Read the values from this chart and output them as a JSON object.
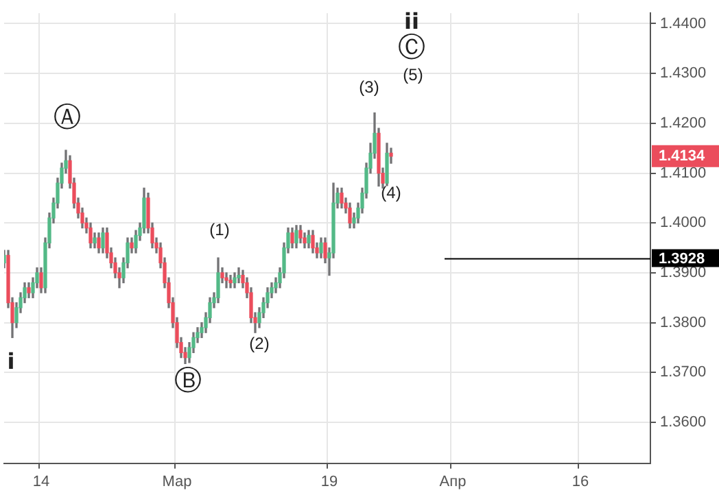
{
  "chart_data": {
    "type": "candlestick",
    "categories": [
      null,
      null,
      null,
      null,
      null,
      null,
      null,
      null,
      null,
      "14",
      null,
      null,
      null,
      null,
      null,
      null,
      null,
      null,
      null,
      null,
      null,
      null,
      null,
      null,
      null,
      null,
      null,
      null,
      null,
      null,
      null,
      null,
      null,
      null,
      null,
      null,
      null,
      null,
      null,
      null,
      null,
      null,
      "Мар",
      null,
      null,
      null,
      null,
      null,
      null,
      null,
      null,
      null,
      null,
      null,
      null,
      null,
      null,
      null,
      null,
      null,
      null,
      null,
      null,
      null,
      null,
      null,
      null,
      null,
      null,
      null,
      null,
      null,
      null,
      null,
      null,
      null,
      null,
      null,
      null,
      "19",
      null,
      null,
      null,
      null,
      null,
      null,
      null,
      null,
      null,
      null,
      null,
      null,
      null,
      null,
      null,
      null,
      null,
      null,
      null,
      null,
      null,
      null,
      null,
      null,
      null,
      null,
      null,
      null,
      null,
      "Апр",
      null,
      null,
      null,
      null,
      null,
      null,
      null,
      null,
      null,
      null,
      null,
      null,
      null,
      null,
      null,
      null,
      null,
      null,
      null,
      null,
      null,
      null,
      null,
      null,
      null,
      null,
      null,
      null,
      null,
      null,
      "16",
      null,
      null,
      null,
      null,
      null,
      null,
      null,
      null,
      null,
      null,
      null,
      null,
      null,
      null,
      null,
      null,
      null
    ],
    "ohlc": [
      [
        1.392,
        1.3945,
        1.391,
        1.3935
      ],
      [
        1.3935,
        1.3945,
        1.383,
        1.384
      ],
      [
        1.384,
        1.385,
        1.377,
        1.38
      ],
      [
        1.38,
        1.384,
        1.379,
        1.383
      ],
      [
        1.383,
        1.386,
        1.382,
        1.385
      ],
      [
        1.385,
        1.388,
        1.384,
        1.387
      ],
      [
        1.387,
        1.388,
        1.385,
        1.386
      ],
      [
        1.386,
        1.389,
        1.385,
        1.388
      ],
      [
        1.388,
        1.391,
        1.387,
        1.39
      ],
      [
        1.39,
        1.391,
        1.386,
        1.387
      ],
      [
        1.387,
        1.397,
        1.386,
        1.396
      ],
      [
        1.396,
        1.402,
        1.395,
        1.401
      ],
      [
        1.401,
        1.405,
        1.4,
        1.404
      ],
      [
        1.404,
        1.409,
        1.403,
        1.408
      ],
      [
        1.408,
        1.412,
        1.407,
        1.411
      ],
      [
        1.411,
        1.4146,
        1.41,
        1.4125
      ],
      [
        1.4125,
        1.4135,
        1.407,
        1.408
      ],
      [
        1.408,
        1.409,
        1.403,
        1.404
      ],
      [
        1.404,
        1.405,
        1.401,
        1.402
      ],
      [
        1.402,
        1.403,
        1.399,
        1.4
      ],
      [
        1.4,
        1.401,
        1.398,
        1.399
      ],
      [
        1.399,
        1.4,
        1.395,
        1.396
      ],
      [
        1.396,
        1.398,
        1.395,
        1.397
      ],
      [
        1.397,
        1.398,
        1.394,
        1.395
      ],
      [
        1.395,
        1.399,
        1.394,
        1.398
      ],
      [
        1.398,
        1.399,
        1.393,
        1.394
      ],
      [
        1.394,
        1.395,
        1.391,
        1.392
      ],
      [
        1.392,
        1.393,
        1.389,
        1.39
      ],
      [
        1.39,
        1.391,
        1.387,
        1.389
      ],
      [
        1.389,
        1.393,
        1.388,
        1.392
      ],
      [
        1.392,
        1.397,
        1.391,
        1.396
      ],
      [
        1.396,
        1.397,
        1.394,
        1.395
      ],
      [
        1.395,
        1.3985,
        1.394,
        1.3975
      ],
      [
        1.3975,
        1.4,
        1.3965,
        1.399
      ],
      [
        1.399,
        1.407,
        1.398,
        1.405
      ],
      [
        1.405,
        1.406,
        1.398,
        1.399
      ],
      [
        1.399,
        1.4,
        1.395,
        1.396
      ],
      [
        1.396,
        1.397,
        1.394,
        1.395
      ],
      [
        1.395,
        1.396,
        1.391,
        1.392
      ],
      [
        1.392,
        1.393,
        1.387,
        1.388
      ],
      [
        1.388,
        1.389,
        1.383,
        1.384
      ],
      [
        1.384,
        1.385,
        1.379,
        1.38
      ],
      [
        1.38,
        1.381,
        1.375,
        1.376
      ],
      [
        1.376,
        1.377,
        1.373,
        1.374
      ],
      [
        1.374,
        1.375,
        1.3718,
        1.373
      ],
      [
        1.373,
        1.376,
        1.372,
        1.375
      ],
      [
        1.375,
        1.378,
        1.374,
        1.377
      ],
      [
        1.377,
        1.379,
        1.376,
        1.378
      ],
      [
        1.378,
        1.38,
        1.377,
        1.379
      ],
      [
        1.379,
        1.382,
        1.378,
        1.381
      ],
      [
        1.381,
        1.385,
        1.38,
        1.384
      ],
      [
        1.384,
        1.386,
        1.383,
        1.385
      ],
      [
        1.385,
        1.393,
        1.384,
        1.39
      ],
      [
        1.39,
        1.391,
        1.388,
        1.389
      ],
      [
        1.389,
        1.39,
        1.387,
        1.3885
      ],
      [
        1.3885,
        1.3895,
        1.387,
        1.388
      ],
      [
        1.388,
        1.39,
        1.387,
        1.389
      ],
      [
        1.389,
        1.391,
        1.388,
        1.3895
      ],
      [
        1.3895,
        1.3905,
        1.387,
        1.388
      ],
      [
        1.388,
        1.389,
        1.385,
        1.386
      ],
      [
        1.386,
        1.387,
        1.38,
        1.381
      ],
      [
        1.381,
        1.382,
        1.378,
        1.38
      ],
      [
        1.38,
        1.383,
        1.379,
        1.382
      ],
      [
        1.382,
        1.385,
        1.381,
        1.384
      ],
      [
        1.384,
        1.387,
        1.383,
        1.386
      ],
      [
        1.386,
        1.388,
        1.385,
        1.387
      ],
      [
        1.387,
        1.389,
        1.386,
        1.388
      ],
      [
        1.388,
        1.391,
        1.387,
        1.39
      ],
      [
        1.39,
        1.396,
        1.389,
        1.395
      ],
      [
        1.395,
        1.399,
        1.394,
        1.398
      ],
      [
        1.398,
        1.399,
        1.395,
        1.396
      ],
      [
        1.396,
        1.3995,
        1.395,
        1.3985
      ],
      [
        1.3985,
        1.3995,
        1.396,
        1.397
      ],
      [
        1.397,
        1.398,
        1.395,
        1.396
      ],
      [
        1.396,
        1.3985,
        1.395,
        1.3975
      ],
      [
        1.3975,
        1.3985,
        1.394,
        1.395
      ],
      [
        1.395,
        1.396,
        1.393,
        1.394
      ],
      [
        1.394,
        1.397,
        1.393,
        1.396
      ],
      [
        1.396,
        1.397,
        1.392,
        1.393
      ],
      [
        1.393,
        1.395,
        1.3895,
        1.394
      ],
      [
        1.394,
        1.408,
        1.393,
        1.404
      ],
      [
        1.404,
        1.407,
        1.403,
        1.406
      ],
      [
        1.406,
        1.407,
        1.403,
        1.404
      ],
      [
        1.404,
        1.405,
        1.402,
        1.403
      ],
      [
        1.403,
        1.404,
        1.399,
        1.4
      ],
      [
        1.4,
        1.402,
        1.399,
        1.401
      ],
      [
        1.401,
        1.404,
        1.4,
        1.403
      ],
      [
        1.403,
        1.407,
        1.402,
        1.406
      ],
      [
        1.406,
        1.412,
        1.405,
        1.411
      ],
      [
        1.411,
        1.416,
        1.41,
        1.414
      ],
      [
        1.414,
        1.4221,
        1.413,
        1.418
      ],
      [
        1.418,
        1.419,
        1.4074,
        1.41
      ],
      [
        1.41,
        1.411,
        1.407,
        1.408
      ],
      [
        1.408,
        1.416,
        1.4075,
        1.414
      ],
      [
        1.414,
        1.415,
        1.412,
        1.4134
      ],
      null,
      null,
      null,
      null,
      null,
      null,
      null,
      null,
      null,
      null,
      null,
      null,
      null,
      null,
      null,
      null,
      null,
      null,
      null,
      null,
      null,
      null,
      null,
      null,
      null,
      null,
      null,
      null,
      null,
      null,
      null,
      null,
      null,
      null,
      null,
      null,
      null,
      null,
      null,
      null,
      null,
      null,
      null,
      null,
      null,
      null,
      null,
      null,
      null,
      null,
      null,
      null,
      null,
      null,
      null,
      null,
      null,
      null,
      null,
      null,
      null,
      null,
      null
    ],
    "colors": [
      "#53b987",
      "#eb4d5c",
      "#eb4d5c",
      "#53b987",
      "#53b987",
      "#53b987",
      "#eb4d5c",
      "#53b987",
      "#53b987",
      "#eb4d5c",
      "#53b987",
      "#53b987",
      "#53b987",
      "#53b987",
      "#53b987",
      "#53b987",
      "#eb4d5c",
      "#eb4d5c",
      "#eb4d5c",
      "#eb4d5c",
      "#eb4d5c",
      "#eb4d5c",
      "#53b987",
      "#eb4d5c",
      "#53b987",
      "#eb4d5c",
      "#eb4d5c",
      "#eb4d5c",
      "#eb4d5c",
      "#53b987",
      "#53b987",
      "#eb4d5c",
      "#53b987",
      "#53b987",
      "#53b987",
      "#eb4d5c",
      "#eb4d5c",
      "#eb4d5c",
      "#eb4d5c",
      "#eb4d5c",
      "#eb4d5c",
      "#eb4d5c",
      "#eb4d5c",
      "#eb4d5c",
      "#eb4d5c",
      "#53b987",
      "#53b987",
      "#53b987",
      "#53b987",
      "#53b987",
      "#53b987",
      "#53b987",
      "#53b987",
      "#eb4d5c",
      "#eb4d5c",
      "#eb4d5c",
      "#53b987",
      "#53b987",
      "#eb4d5c",
      "#eb4d5c",
      "#eb4d5c",
      "#eb4d5c",
      "#53b987",
      "#53b987",
      "#53b987",
      "#53b987",
      "#53b987",
      "#53b987",
      "#53b987",
      "#53b987",
      "#eb4d5c",
      "#53b987",
      "#eb4d5c",
      "#eb4d5c",
      "#53b987",
      "#eb4d5c",
      "#eb4d5c",
      "#53b987",
      "#eb4d5c",
      "#53b987",
      "#53b987",
      "#53b987",
      "#eb4d5c",
      "#eb4d5c",
      "#eb4d5c",
      "#53b987",
      "#53b987",
      "#53b987",
      "#53b987",
      "#53b987",
      "#53b987",
      "#eb4d5c",
      "#eb4d5c",
      "#53b987",
      "#eb4d5c",
      null,
      null,
      null,
      null,
      null,
      null,
      null,
      null,
      null,
      null,
      null,
      null,
      null,
      null,
      null,
      null,
      null,
      null,
      null,
      null,
      null,
      null,
      null,
      null,
      null,
      null,
      null,
      null,
      null,
      null,
      null,
      null,
      null,
      null,
      null,
      null,
      null,
      null,
      null,
      null,
      null,
      null,
      null,
      null,
      null,
      null,
      null,
      null,
      null,
      null,
      null,
      null,
      null,
      null,
      null,
      null,
      null,
      null,
      null,
      null,
      null,
      null,
      null
    ],
    "ylim": [
      1.3518,
      1.4421
    ],
    "yticks": [
      {
        "value": 1.36,
        "label": "1.3600"
      },
      {
        "value": 1.37,
        "label": "1.3700"
      },
      {
        "value": 1.38,
        "label": "1.3800"
      },
      {
        "value": 1.39,
        "label": "1.3900"
      },
      {
        "value": 1.4,
        "label": "1.4000"
      },
      {
        "value": 1.41,
        "label": "1.4100"
      },
      {
        "value": 1.42,
        "label": "1.4200"
      },
      {
        "value": 1.43,
        "label": "1.4300"
      },
      {
        "value": 1.44,
        "label": "1.4400"
      }
    ],
    "grid": true,
    "ref_lines": [
      {
        "axis": "y",
        "value": 1.3928,
        "label": "1.3928",
        "color": "#000000"
      }
    ],
    "annotations": [
      "1.4134",
      "Ⓐ",
      "Ⓑ",
      "Ⓒ",
      "ii",
      "i",
      "(1)",
      "(2)",
      "(3)",
      "(4)",
      "(5)"
    ]
  }
}
